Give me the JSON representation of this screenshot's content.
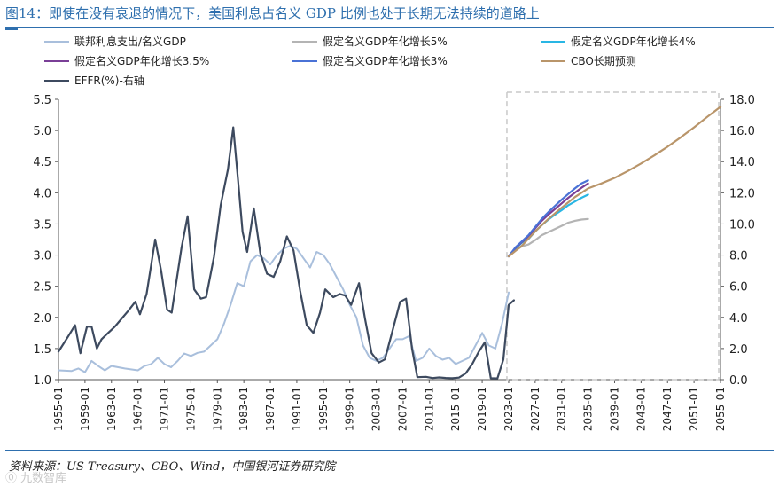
{
  "title": "图14：即使在没有衰退的情况下，美国利息占名义 GDP 比例也处于长期无法持续的道路上",
  "source": "资料来源：US Treasury、CBO、Wind，中国银河证券研究院",
  "watermark": "⓪ 九数智库",
  "colors": {
    "interest_gdp": "#a9bfdc",
    "g5": "#b4b4b4",
    "g4": "#29b6e4",
    "g35": "#7a3f97",
    "g3": "#4a72d6",
    "cbo": "#b9956a",
    "effr": "#3d4a5f",
    "forecast_box": "#c8c8c8"
  },
  "chart_data": {
    "type": "line",
    "title": "即使在没有衰退的情况下，美国利息占名义 GDP 比例也处于长期无法持续的道路上",
    "xlabel": "",
    "ylabel_left": "",
    "ylabel_right": "",
    "x_range": [
      1955,
      2055
    ],
    "x_ticks": [
      "1955-01",
      "1959-01",
      "1963-01",
      "1967-01",
      "1971-01",
      "1975-01",
      "1979-01",
      "1983-01",
      "1987-01",
      "1991-01",
      "1995-01",
      "1999-01",
      "2003-01",
      "2007-01",
      "2011-01",
      "2015-01",
      "2019-01",
      "2023-01",
      "2027-01",
      "2031-01",
      "2035-01",
      "2039-01",
      "2043-01",
      "2047-01",
      "2051-01",
      "2055-01"
    ],
    "ylim_left": [
      1.0,
      5.5
    ],
    "yticks_left": [
      "1.0",
      "1.5",
      "2.0",
      "2.5",
      "3.0",
      "3.5",
      "4.0",
      "4.5",
      "5.0",
      "5.5"
    ],
    "ylim_right": [
      0.0,
      18.0
    ],
    "yticks_right": [
      "0.0",
      "2.0",
      "4.0",
      "6.0",
      "8.0",
      "10.0",
      "12.0",
      "14.0",
      "16.0",
      "18.0"
    ],
    "forecast_region": [
      2023,
      2055
    ],
    "legend": [
      {
        "key": "interest_gdp",
        "label": "联邦利息支出/名义GDP"
      },
      {
        "key": "g5",
        "label": "假定名义GDP年化增长5%"
      },
      {
        "key": "g4",
        "label": "假定名义GDP年化增长4%"
      },
      {
        "key": "g35",
        "label": "假定名义GDP年化增长3.5%"
      },
      {
        "key": "g3",
        "label": "假定名义GDP年化增长3%"
      },
      {
        "key": "cbo",
        "label": "CBO长期预测"
      },
      {
        "key": "effr",
        "label": "EFFR(%)-右轴"
      }
    ],
    "series": [
      {
        "name": "联邦利息支出/名义GDP",
        "key": "interest_gdp",
        "axis": "left",
        "x": [
          1955,
          1957,
          1958,
          1959,
          1960,
          1961,
          1962,
          1963,
          1965,
          1967,
          1968,
          1969,
          1970,
          1971,
          1972,
          1973,
          1974,
          1975,
          1976,
          1977,
          1979,
          1980,
          1981,
          1982,
          1983,
          1984,
          1985,
          1986,
          1987,
          1988,
          1989,
          1990,
          1991,
          1992,
          1993,
          1994,
          1995,
          1996,
          1997,
          1998,
          1999,
          2000,
          2001,
          2002,
          2003,
          2004,
          2005,
          2006,
          2007,
          2008,
          2009,
          2010,
          2011,
          2012,
          2013,
          2014,
          2015,
          2016,
          2017,
          2018,
          2019,
          2020,
          2021,
          2022,
          2023
        ],
        "y": [
          1.15,
          1.14,
          1.18,
          1.12,
          1.3,
          1.22,
          1.15,
          1.22,
          1.18,
          1.15,
          1.22,
          1.25,
          1.35,
          1.25,
          1.2,
          1.3,
          1.42,
          1.38,
          1.43,
          1.45,
          1.65,
          1.9,
          2.2,
          2.55,
          2.5,
          2.9,
          3.0,
          2.95,
          2.85,
          3.0,
          3.1,
          3.15,
          3.1,
          2.95,
          2.8,
          3.05,
          3.0,
          2.85,
          2.65,
          2.45,
          2.2,
          2.0,
          1.55,
          1.35,
          1.3,
          1.35,
          1.5,
          1.65,
          1.65,
          1.7,
          1.3,
          1.35,
          1.5,
          1.38,
          1.32,
          1.35,
          1.25,
          1.3,
          1.35,
          1.55,
          1.75,
          1.55,
          1.5,
          1.9,
          2.4
        ]
      },
      {
        "name": "EFFR(%)-右轴",
        "key": "effr",
        "axis": "right",
        "x": [
          1955,
          1956.5,
          1957.5,
          1958.3,
          1959.3,
          1960,
          1960.8,
          1961.5,
          1962.5,
          1963.5,
          1964.5,
          1965.5,
          1966.6,
          1967.3,
          1968.3,
          1969.6,
          1970.5,
          1971.4,
          1972.1,
          1973.6,
          1974.5,
          1975.5,
          1976.5,
          1977.3,
          1978.5,
          1979.5,
          1980.6,
          1981.4,
          1982.3,
          1982.8,
          1983.5,
          1984.5,
          1985.5,
          1986.5,
          1987.5,
          1988.5,
          1989.5,
          1990.5,
          1991.5,
          1992.5,
          1993.5,
          1994.5,
          1995.3,
          1996.5,
          1997.5,
          1998.3,
          1999.2,
          2000.4,
          2001.3,
          2002.3,
          2003.4,
          2004.3,
          2005.5,
          2006.6,
          2007.5,
          2008.4,
          2009.2,
          2010.5,
          2011.5,
          2012.5,
          2013.5,
          2014.5,
          2015.5,
          2016.5,
          2017.5,
          2018.5,
          2019.4,
          2020.3,
          2021.3,
          2022.2,
          2023,
          2023.8
        ],
        "y": [
          1.8,
          2.8,
          3.5,
          1.7,
          3.4,
          3.4,
          2.0,
          2.6,
          3.0,
          3.4,
          3.9,
          4.4,
          5.0,
          4.2,
          5.5,
          9.0,
          7.0,
          4.5,
          4.3,
          8.5,
          10.5,
          5.8,
          5.2,
          5.3,
          7.9,
          11.2,
          13.5,
          16.2,
          12.0,
          9.5,
          8.2,
          11.0,
          8.1,
          6.8,
          6.6,
          7.6,
          9.2,
          8.3,
          5.7,
          3.5,
          3.0,
          4.3,
          5.8,
          5.3,
          5.5,
          5.4,
          4.8,
          6.2,
          3.9,
          1.7,
          1.1,
          1.3,
          3.2,
          5.0,
          5.2,
          2.0,
          0.16,
          0.18,
          0.1,
          0.14,
          0.11,
          0.09,
          0.13,
          0.4,
          1.0,
          1.8,
          2.4,
          0.09,
          0.08,
          1.3,
          4.8,
          5.1
        ]
      },
      {
        "name": "假定名义GDP年化增长5%",
        "key": "g5",
        "axis": "left",
        "x": [
          2023,
          2024,
          2025,
          2026,
          2027,
          2028,
          2029,
          2030,
          2031,
          2032,
          2033,
          2034,
          2035
        ],
        "y": [
          2.98,
          3.07,
          3.14,
          3.17,
          3.24,
          3.32,
          3.37,
          3.42,
          3.47,
          3.52,
          3.55,
          3.57,
          3.58
        ]
      },
      {
        "name": "假定名义GDP年化增长4%",
        "key": "g4",
        "axis": "left",
        "x": [
          2023,
          2024,
          2025,
          2026,
          2027,
          2028,
          2029,
          2030,
          2031,
          2032,
          2033,
          2034,
          2035
        ],
        "y": [
          2.98,
          3.1,
          3.2,
          3.26,
          3.38,
          3.48,
          3.57,
          3.65,
          3.72,
          3.8,
          3.86,
          3.92,
          3.97
        ]
      },
      {
        "name": "假定名义GDP年化增长3.5%",
        "key": "g35",
        "axis": "left",
        "x": [
          2023,
          2024,
          2025,
          2026,
          2027,
          2028,
          2029,
          2030,
          2031,
          2032,
          2033,
          2034,
          2035
        ],
        "y": [
          2.98,
          3.11,
          3.21,
          3.3,
          3.43,
          3.55,
          3.65,
          3.74,
          3.83,
          3.92,
          4.0,
          4.08,
          4.15
        ]
      },
      {
        "name": "假定名义GDP年化增长3%",
        "key": "g3",
        "axis": "left",
        "x": [
          2023,
          2024,
          2025,
          2026,
          2027,
          2028,
          2029,
          2030,
          2031,
          2032,
          2033,
          2034,
          2035
        ],
        "y": [
          2.98,
          3.12,
          3.22,
          3.32,
          3.45,
          3.58,
          3.69,
          3.79,
          3.89,
          3.98,
          4.07,
          4.15,
          4.2
        ]
      },
      {
        "name": "CBO长期预测",
        "key": "cbo",
        "axis": "left",
        "x": [
          2023,
          2025,
          2027,
          2029,
          2031,
          2033,
          2035,
          2037,
          2039,
          2041,
          2043,
          2045,
          2047,
          2049,
          2051,
          2053,
          2055
        ],
        "y": [
          2.98,
          3.15,
          3.38,
          3.58,
          3.76,
          3.93,
          4.07,
          4.15,
          4.24,
          4.35,
          4.47,
          4.6,
          4.74,
          4.89,
          5.05,
          5.22,
          5.38
        ]
      }
    ]
  }
}
